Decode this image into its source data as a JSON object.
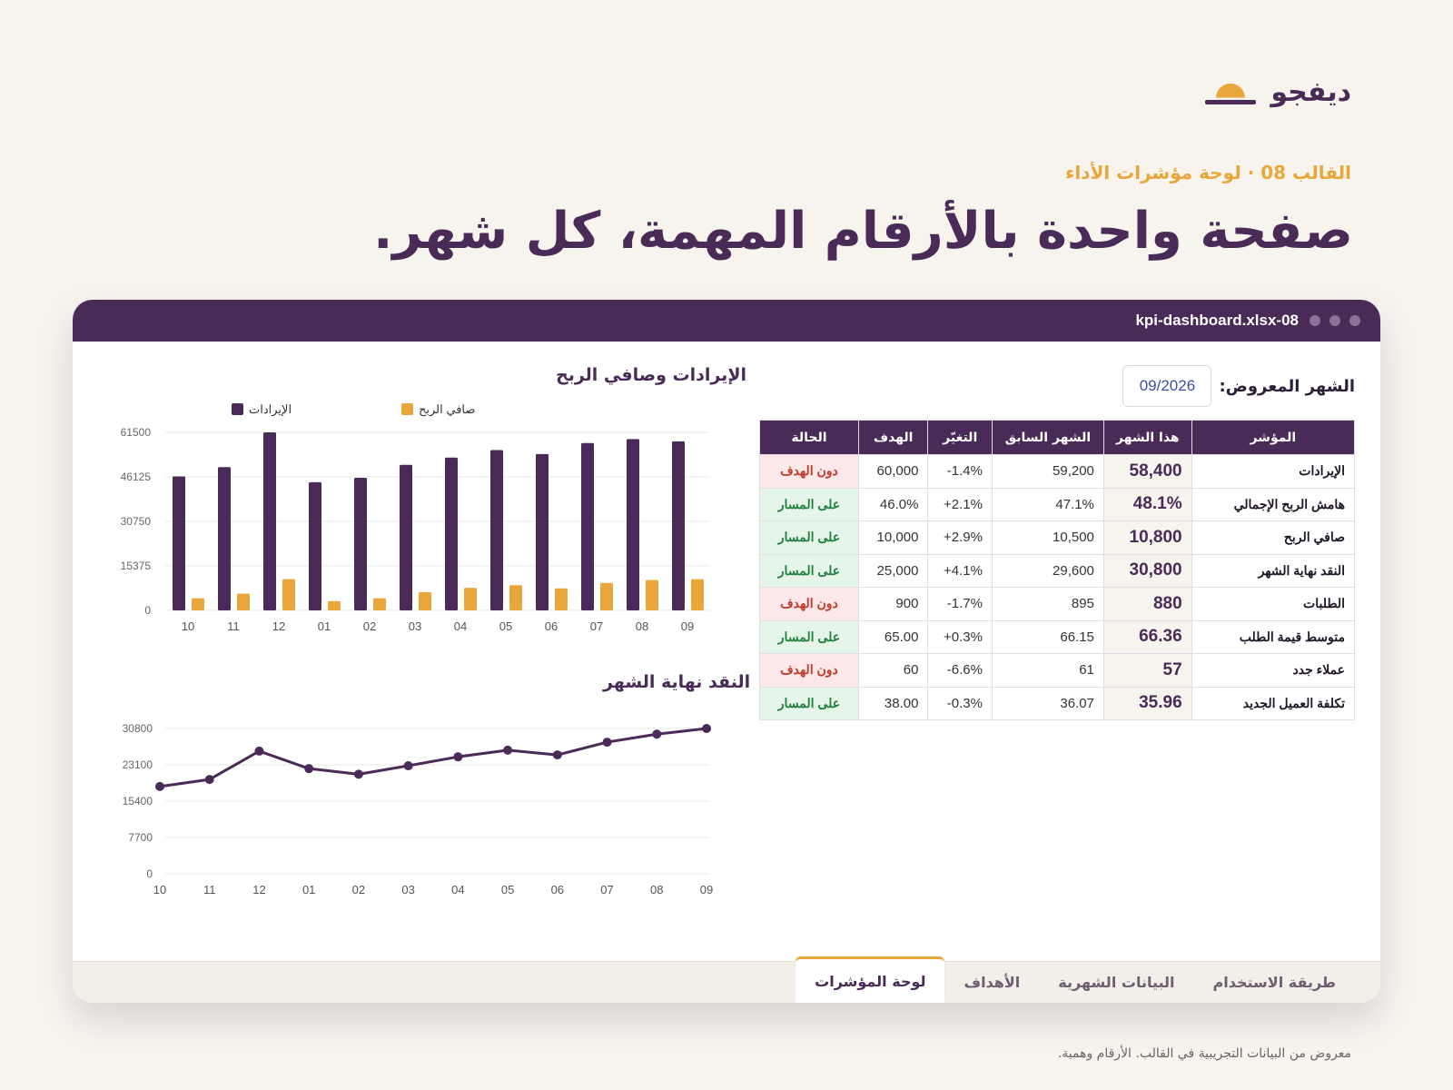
{
  "brand": {
    "name": "ديفجو",
    "logo_icon": "sun-horizon-icon",
    "accent": "#e9a73b",
    "primary": "#4a2b57"
  },
  "eyebrow": "القالب 08 · لوحة مؤشرات الأداء",
  "headline": "صفحة واحدة بالأرقام المهمة، كل شهر.",
  "window": {
    "filename": "08-kpi-dashboard.xlsx",
    "month_label": "الشهر المعروض:",
    "month_value": "09/2026"
  },
  "table": {
    "headers": [
      "المؤشر",
      "هذا الشهر",
      "الشهر السابق",
      "التغيّر",
      "الهدف",
      "الحالة"
    ],
    "rows": [
      [
        "الإيرادات",
        "58,400",
        "59,200",
        "-1.4%",
        "60,000",
        "دون الهدف"
      ],
      [
        "هامش الربح الإجمالي",
        "48.1%",
        "47.1%",
        "+2.1%",
        "46.0%",
        "على المسار"
      ],
      [
        "صافي الربح",
        "10,800",
        "10,500",
        "+2.9%",
        "10,000",
        "على المسار"
      ],
      [
        "النقد نهاية الشهر",
        "30,800",
        "29,600",
        "+4.1%",
        "25,000",
        "على المسار"
      ],
      [
        "الطلبات",
        "880",
        "895",
        "-1.7%",
        "900",
        "دون الهدف"
      ],
      [
        "متوسط قيمة الطلب",
        "66.36",
        "66.15",
        "+0.3%",
        "65.00",
        "على المسار"
      ],
      [
        "عملاء جدد",
        "57",
        "61",
        "-6.6%",
        "60",
        "دون الهدف"
      ],
      [
        "تكلفة العميل الجديد",
        "35.96",
        "36.07",
        "-0.3%",
        "38.00",
        "على المسار"
      ]
    ],
    "status_colors": {
      "دون الهدف": "#c0392b",
      "على المسار": "#22803f"
    }
  },
  "chart_data": [
    {
      "type": "bar",
      "title": "الإيرادات وصافي الربح",
      "categories": [
        "10",
        "11",
        "12",
        "01",
        "02",
        "03",
        "04",
        "05",
        "06",
        "07",
        "08",
        "09"
      ],
      "series": [
        {
          "name": "الإيرادات",
          "color": "#4a2b57",
          "values": [
            46300,
            49500,
            61500,
            44300,
            45800,
            50300,
            52800,
            55400,
            54000,
            57800,
            59200,
            58400
          ]
        },
        {
          "name": "صافي الربح",
          "color": "#e9a73b",
          "values": [
            4200,
            5800,
            10800,
            3200,
            4200,
            6300,
            7800,
            8700,
            7600,
            9500,
            10500,
            10800
          ]
        }
      ],
      "yticks": [
        0,
        15375,
        30750,
        46125,
        61500
      ],
      "ylim": [
        0,
        61500
      ],
      "legend": "top",
      "grid": true
    },
    {
      "type": "line",
      "title": "النقد نهاية الشهر",
      "categories": [
        "10",
        "11",
        "12",
        "01",
        "02",
        "03",
        "04",
        "05",
        "06",
        "07",
        "08",
        "09"
      ],
      "series": [
        {
          "color": "#4a2b57",
          "values": [
            18500,
            20000,
            26000,
            22300,
            21100,
            22900,
            24800,
            26200,
            25200,
            27900,
            29600,
            30800
          ]
        }
      ],
      "yticks": [
        0,
        7700,
        15400,
        23100,
        30800
      ],
      "ylim": [
        0,
        30800
      ],
      "grid": true
    }
  ],
  "tabs": [
    {
      "label": "طريقة الاستخدام",
      "active": false
    },
    {
      "label": "البيانات الشهرية",
      "active": false
    },
    {
      "label": "الأهداف",
      "active": false
    },
    {
      "label": "لوحة المؤشرات",
      "active": true
    }
  ],
  "footnote": "معروض من البيانات التجريبية في القالب. الأرقام وهمية."
}
